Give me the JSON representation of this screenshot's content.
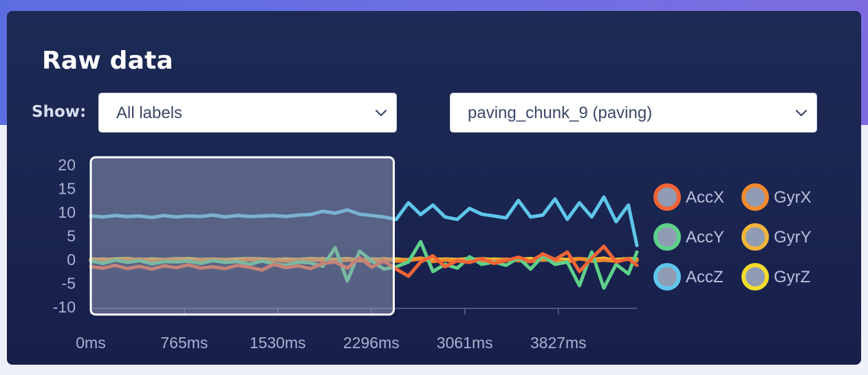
{
  "panel": {
    "title": "Raw data"
  },
  "filters": {
    "show_label": "Show:",
    "label_filter_value": "All labels",
    "sample_value": "paving_chunk_9 (paving)"
  },
  "chart_data": {
    "type": "line",
    "title": "",
    "xlabel": "",
    "ylabel": "",
    "x_ticks": [
      "0ms",
      "765ms",
      "1530ms",
      "2296ms",
      "3061ms",
      "3827ms"
    ],
    "x_tick_values": [
      0,
      765,
      1530,
      2296,
      3061,
      3827
    ],
    "xlim": [
      0,
      4470
    ],
    "y_ticks": [
      "20",
      "15",
      "10",
      "5",
      "0",
      "-5",
      "-10"
    ],
    "y_tick_values": [
      20,
      15,
      10,
      5,
      0,
      -5,
      -10
    ],
    "ylim": [
      -10,
      20
    ],
    "grid": false,
    "legend_position": "right",
    "selection_window_ms": [
      0,
      2480
    ],
    "x": [
      0,
      100,
      200,
      300,
      400,
      500,
      600,
      700,
      800,
      900,
      1000,
      1100,
      1200,
      1300,
      1400,
      1500,
      1600,
      1700,
      1800,
      1900,
      2000,
      2100,
      2200,
      2300,
      2400,
      2500,
      2600,
      2700,
      2800,
      2900,
      3000,
      3100,
      3200,
      3300,
      3400,
      3500,
      3600,
      3700,
      3800,
      3900,
      4000,
      4100,
      4200,
      4300,
      4400,
      4470
    ],
    "series": [
      {
        "name": "AccX",
        "color": "#f26436",
        "values": [
          -1.5,
          -1.8,
          -1.2,
          -1.9,
          -1.4,
          -2.0,
          -1.3,
          -1.7,
          -1.1,
          -1.8,
          -1.5,
          -1.9,
          -1.2,
          -1.6,
          -2.2,
          -1.0,
          -1.7,
          -1.3,
          -1.9,
          -0.8,
          -0.5,
          -1.8,
          0.4,
          -1.6,
          -0.3,
          -2.0,
          -3.5,
          -0.5,
          0.8,
          -1.5,
          -0.2,
          -0.6,
          0.2,
          -0.8,
          -0.2,
          0.5,
          -0.4,
          1.2,
          0.0,
          1.6,
          -2.5,
          0.3,
          2.8,
          -0.5,
          0.2,
          -1.2
        ]
      },
      {
        "name": "AccY",
        "color": "#5fd08a",
        "values": [
          -0.3,
          -0.8,
          -0.1,
          -0.6,
          -0.2,
          -0.9,
          -0.4,
          -0.5,
          -0.3,
          -0.8,
          -0.2,
          -0.6,
          -0.4,
          -1.0,
          -0.3,
          -0.9,
          -1.2,
          -0.5,
          -0.7,
          -1.4,
          2.5,
          -4.5,
          1.8,
          -0.3,
          -2.0,
          -1.5,
          -0.5,
          3.8,
          -2.5,
          -1.0,
          -1.8,
          0.6,
          -1.0,
          -0.5,
          -1.2,
          0.4,
          -2.0,
          0.8,
          -1.0,
          -0.5,
          -5.5,
          1.6,
          -6.0,
          -1.0,
          -3.0,
          1.6
        ]
      },
      {
        "name": "AccZ",
        "color": "#5fc6ea",
        "values": [
          9.2,
          9.0,
          9.3,
          9.1,
          9.2,
          8.9,
          9.3,
          9.0,
          9.2,
          9.1,
          9.4,
          9.0,
          9.3,
          9.1,
          9.2,
          9.3,
          9.1,
          9.4,
          9.5,
          10.2,
          9.8,
          10.5,
          9.6,
          9.3,
          9.0,
          8.5,
          12.0,
          9.5,
          11.5,
          9.0,
          8.5,
          10.8,
          9.6,
          9.2,
          8.8,
          12.5,
          9.0,
          9.4,
          12.8,
          8.5,
          12.0,
          9.0,
          13.2,
          8.0,
          11.5,
          3.0
        ]
      },
      {
        "name": "GyrX",
        "color": "#f28a2e",
        "values": [
          -0.2,
          -0.3,
          -0.1,
          -0.2,
          0.0,
          -0.3,
          -0.2,
          -0.1,
          -0.3,
          -0.2,
          -0.1,
          -0.2,
          -0.3,
          0.0,
          -0.2,
          -0.1,
          -0.3,
          -0.2,
          0.0,
          -0.2,
          -0.3,
          -0.1,
          -0.2,
          -0.4,
          0.1,
          -0.3,
          -0.2,
          0.2,
          -0.4,
          -0.1,
          -0.3,
          0.0,
          -0.2,
          -0.3,
          0.1,
          -0.2,
          -0.4,
          0.0,
          -0.2,
          -0.5,
          0.2,
          -0.3,
          -0.1,
          -0.3,
          0.1,
          -0.2
        ]
      },
      {
        "name": "GyrY",
        "color": "#f0b43a",
        "values": [
          0.0,
          0.1,
          -0.1,
          0.0,
          0.1,
          -0.1,
          0.0,
          0.2,
          0.0,
          -0.1,
          0.1,
          0.0,
          -0.1,
          0.1,
          0.0,
          0.0,
          0.1,
          -0.1,
          0.0,
          0.2,
          -0.2,
          0.1,
          0.0,
          -0.1,
          0.2,
          -0.1,
          0.0,
          0.3,
          -0.2,
          0.1,
          0.0,
          -0.1,
          0.2,
          0.0,
          -0.1,
          0.2,
          -0.2,
          0.1,
          0.0,
          -0.3,
          0.2,
          0.0,
          0.3,
          -0.2,
          0.1,
          0.0
        ]
      },
      {
        "name": "GyrZ",
        "color": "#f2dc2c",
        "values": [
          0.1,
          0.0,
          0.1,
          0.2,
          0.0,
          0.1,
          0.0,
          0.1,
          0.2,
          0.0,
          0.1,
          0.0,
          0.1,
          0.2,
          0.1,
          0.0,
          0.1,
          0.0,
          0.2,
          0.1,
          0.0,
          0.2,
          -0.1,
          0.1,
          0.0,
          0.1,
          -0.1,
          0.2,
          0.0,
          0.1,
          0.0,
          0.2,
          -0.1,
          0.1,
          0.0,
          0.1,
          0.2,
          -0.1,
          0.1,
          0.0,
          0.2,
          -0.1,
          0.1,
          0.0,
          0.2,
          0.1
        ]
      }
    ]
  },
  "legend": {
    "items": [
      {
        "label": "AccX",
        "color": "#f26436"
      },
      {
        "label": "GyrX",
        "color": "#f28a2e"
      },
      {
        "label": "AccY",
        "color": "#5fd08a"
      },
      {
        "label": "GyrY",
        "color": "#f0b43a"
      },
      {
        "label": "AccZ",
        "color": "#5fc6ea"
      },
      {
        "label": "GyrZ",
        "color": "#f2dc2c"
      }
    ],
    "marker_fill": "#8f9cb4"
  }
}
